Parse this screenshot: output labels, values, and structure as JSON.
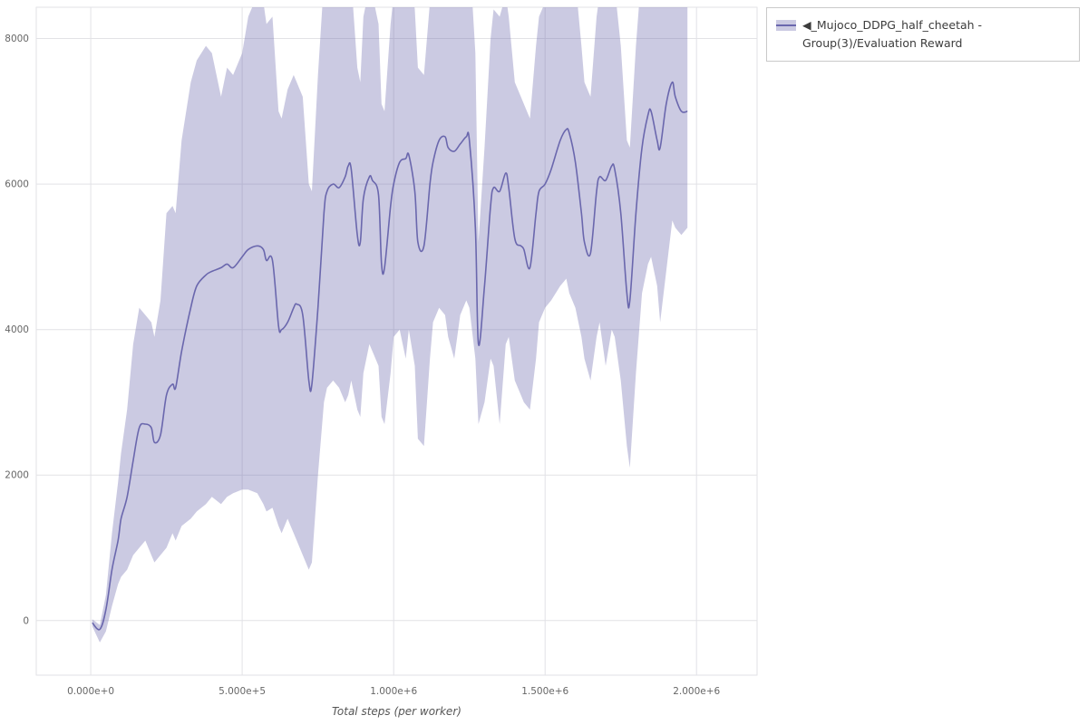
{
  "colors": {
    "line": "#6a67ad",
    "band": "#6a67ad",
    "band_opacity": 0.35,
    "grid": "#e2e2e6",
    "tick_text": "#666666",
    "legend_border": "#c9c9c9"
  },
  "legend": {
    "items": [
      {
        "label": "◀_Mujoco_DDPG_half_cheetah - Group(3)/Evaluation Reward"
      }
    ]
  },
  "chart_data": {
    "type": "line",
    "title": "",
    "xlabel": "Total steps (per worker)",
    "ylabel": "",
    "xlim": [
      -180000,
      2200000
    ],
    "ylim": [
      -750,
      8430
    ],
    "grid": true,
    "legend_position": "top-right-outside",
    "x_ticks": [
      0,
      500000,
      1000000,
      1500000,
      2000000
    ],
    "x_tick_labels": [
      "0.000e+0",
      "5.000e+5",
      "1.000e+6",
      "1.500e+6",
      "2.000e+6"
    ],
    "y_ticks": [
      0,
      2000,
      4000,
      6000,
      8000
    ],
    "y_tick_labels": [
      "0",
      "2000",
      "4000",
      "6000",
      "8000"
    ],
    "series": [
      {
        "name": "◀_Mujoco_DDPG_half_cheetah - Group(3)/Evaluation Reward",
        "line_color": "#6a67ad",
        "band_color": "#6a67ad",
        "band_opacity": 0.35,
        "x": [
          5000,
          30000,
          50000,
          70000,
          90000,
          100000,
          120000,
          140000,
          160000,
          180000,
          200000,
          210000,
          230000,
          250000,
          270000,
          280000,
          300000,
          330000,
          350000,
          380000,
          400000,
          430000,
          450000,
          470000,
          500000,
          520000,
          550000,
          570000,
          580000,
          600000,
          620000,
          630000,
          650000,
          670000,
          680000,
          700000,
          720000,
          730000,
          750000,
          770000,
          780000,
          800000,
          820000,
          840000,
          850000,
          860000,
          880000,
          890000,
          900000,
          920000,
          930000,
          950000,
          960000,
          970000,
          990000,
          1000000,
          1020000,
          1040000,
          1050000,
          1070000,
          1080000,
          1100000,
          1120000,
          1130000,
          1150000,
          1170000,
          1180000,
          1200000,
          1220000,
          1240000,
          1250000,
          1270000,
          1280000,
          1300000,
          1320000,
          1330000,
          1350000,
          1370000,
          1380000,
          1400000,
          1420000,
          1430000,
          1450000,
          1470000,
          1480000,
          1500000,
          1520000,
          1550000,
          1570000,
          1580000,
          1600000,
          1620000,
          1630000,
          1650000,
          1670000,
          1680000,
          1700000,
          1720000,
          1730000,
          1750000,
          1770000,
          1780000,
          1800000,
          1820000,
          1840000,
          1850000,
          1870000,
          1880000,
          1900000,
          1920000,
          1930000,
          1950000,
          1970000
        ],
        "mean": [
          -30,
          -120,
          150,
          700,
          1100,
          1400,
          1700,
          2200,
          2650,
          2700,
          2650,
          2450,
          2550,
          3100,
          3250,
          3200,
          3700,
          4300,
          4600,
          4750,
          4800,
          4850,
          4900,
          4850,
          5000,
          5100,
          5150,
          5100,
          4950,
          4950,
          4050,
          4000,
          4100,
          4300,
          4350,
          4200,
          3300,
          3250,
          4300,
          5600,
          5900,
          6000,
          5950,
          6100,
          6250,
          6200,
          5300,
          5200,
          5800,
          6100,
          6050,
          5850,
          4900,
          4850,
          5700,
          6000,
          6300,
          6350,
          6400,
          5900,
          5200,
          5150,
          6000,
          6300,
          6600,
          6650,
          6500,
          6450,
          6550,
          6650,
          6600,
          5400,
          3800,
          4600,
          5700,
          5950,
          5900,
          6150,
          5950,
          5250,
          5150,
          5100,
          4850,
          5600,
          5900,
          6000,
          6200,
          6600,
          6750,
          6700,
          6300,
          5600,
          5200,
          5050,
          5900,
          6100,
          6050,
          6250,
          6200,
          5600,
          4500,
          4400,
          5600,
          6500,
          6950,
          7000,
          6600,
          6500,
          7100,
          7400,
          7200,
          7000,
          7000
        ],
        "lower": [
          -80,
          -300,
          -150,
          200,
          500,
          600,
          700,
          900,
          1000,
          1100,
          900,
          800,
          900,
          1000,
          1200,
          1100,
          1300,
          1400,
          1500,
          1600,
          1700,
          1600,
          1700,
          1750,
          1800,
          1800,
          1750,
          1600,
          1500,
          1550,
          1300,
          1200,
          1400,
          1200,
          1100,
          900,
          700,
          800,
          2000,
          3000,
          3200,
          3300,
          3200,
          3000,
          3100,
          3300,
          2900,
          2800,
          3400,
          3800,
          3700,
          3500,
          2800,
          2700,
          3400,
          3900,
          4000,
          3600,
          4000,
          3500,
          2500,
          2400,
          3600,
          4100,
          4300,
          4200,
          3900,
          3600,
          4200,
          4400,
          4300,
          3600,
          2700,
          3000,
          3600,
          3500,
          2700,
          3800,
          3900,
          3300,
          3100,
          3000,
          2900,
          3600,
          4100,
          4300,
          4400,
          4600,
          4700,
          4500,
          4300,
          3900,
          3600,
          3300,
          3900,
          4100,
          3500,
          4000,
          3900,
          3300,
          2400,
          2100,
          3400,
          4500,
          4900,
          5000,
          4600,
          4100,
          4800,
          5500,
          5400,
          5300,
          5400
        ],
        "upper": [
          20,
          -60,
          350,
          1200,
          1900,
          2300,
          2900,
          3800,
          4300,
          4200,
          4100,
          3900,
          4400,
          5600,
          5700,
          5600,
          6600,
          7400,
          7700,
          7900,
          7800,
          7200,
          7600,
          7500,
          7800,
          8300,
          8600,
          8500,
          8200,
          8300,
          7000,
          6900,
          7300,
          7500,
          7400,
          7200,
          6000,
          5900,
          7500,
          8800,
          9000,
          8800,
          8600,
          8900,
          9000,
          8800,
          7600,
          7400,
          8300,
          8700,
          8600,
          8200,
          7100,
          7000,
          8200,
          8600,
          9000,
          9100,
          9200,
          8400,
          7600,
          7500,
          8500,
          8900,
          9200,
          9300,
          9100,
          9000,
          9100,
          9300,
          9200,
          7800,
          5200,
          6500,
          8000,
          8400,
          8300,
          8600,
          8300,
          7400,
          7200,
          7100,
          6900,
          7900,
          8300,
          8500,
          8700,
          9200,
          9400,
          9300,
          8800,
          7900,
          7400,
          7200,
          8300,
          8600,
          8500,
          8800,
          8700,
          7900,
          6600,
          6500,
          7900,
          9000,
          9500,
          9600,
          9100,
          9000,
          9600,
          9800,
          9500,
          9200,
          8600
        ]
      }
    ]
  }
}
